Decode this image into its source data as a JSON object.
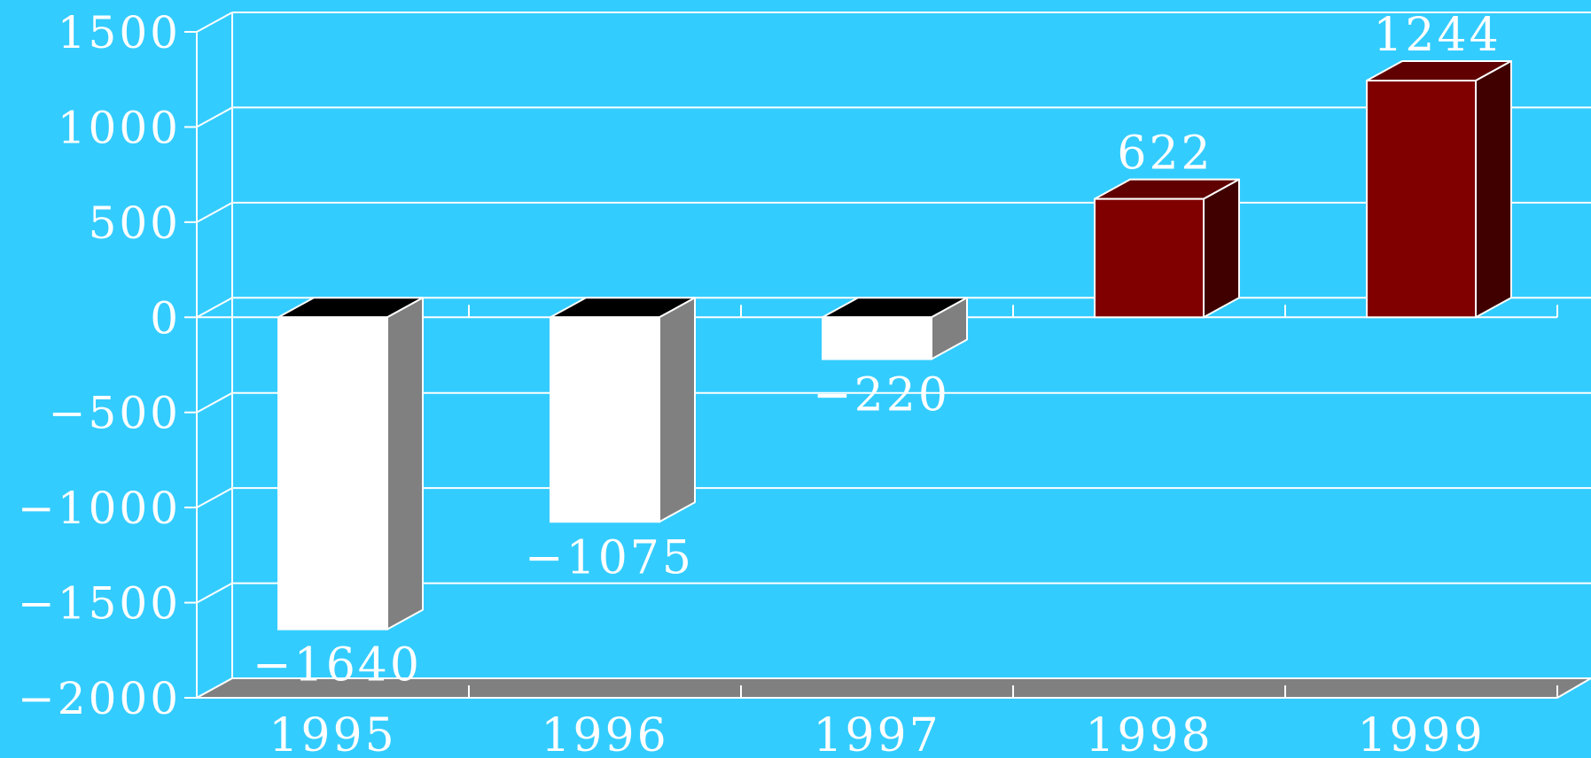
{
  "colors": {
    "background": "#33ccff",
    "grid": "#ffffff",
    "floor": "#808080",
    "negative_front": "#ffffff",
    "negative_side": "#808080",
    "negative_top": "#000000",
    "positive_front": "#800000",
    "positive_side": "#400000",
    "positive_top": "#600000",
    "text": "#ffffff"
  },
  "chart_data": {
    "type": "bar",
    "style": "3d-column",
    "title": "",
    "xlabel": "",
    "ylabel": "",
    "categories": [
      "1995",
      "1996",
      "1997",
      "1998",
      "1999"
    ],
    "values": [
      -1640,
      -1075,
      -220,
      622,
      1244
    ],
    "value_labels": [
      "−1640",
      "−1075",
      "−220",
      "622",
      "1244"
    ],
    "ylim": [
      -2000,
      1500
    ],
    "yticks": [
      1500,
      1000,
      500,
      0,
      -500,
      -1000,
      -1500,
      -2000
    ],
    "ytick_labels": [
      "1500",
      "1000",
      "500",
      "0",
      "−500",
      "−1000",
      "−1500",
      "−2000"
    ],
    "grid": true,
    "legend": "none"
  }
}
